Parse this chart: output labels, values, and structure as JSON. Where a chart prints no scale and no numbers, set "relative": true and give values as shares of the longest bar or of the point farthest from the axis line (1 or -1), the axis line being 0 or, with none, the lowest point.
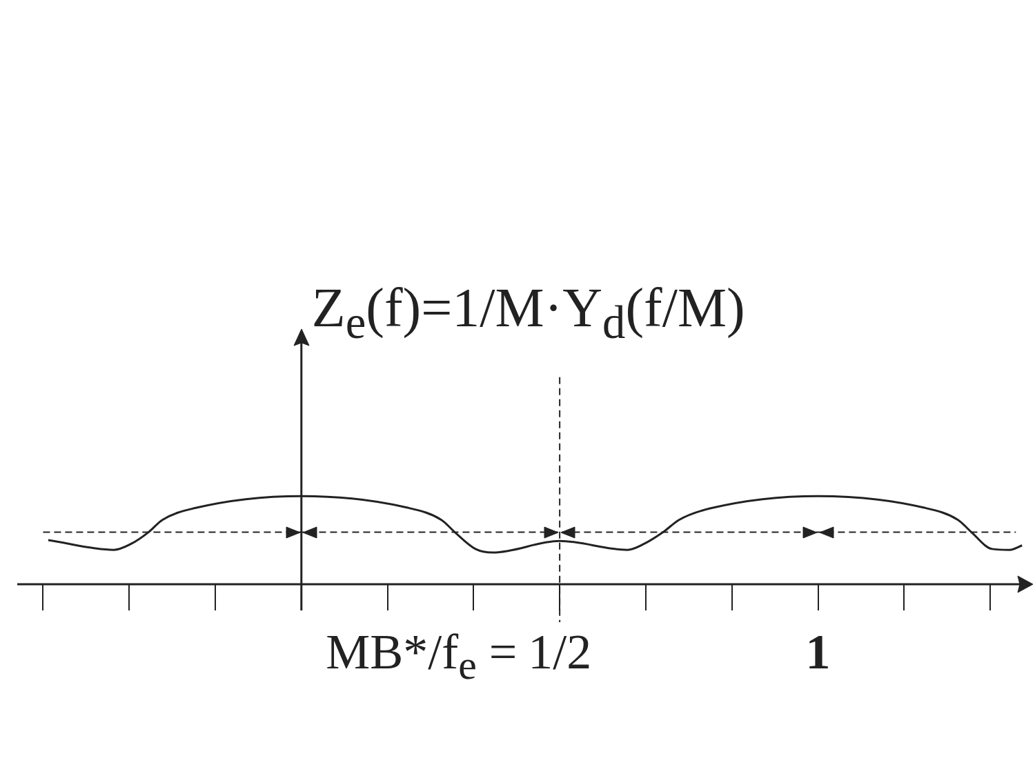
{
  "chart_data": {
    "type": "line",
    "relative": true,
    "ylabel": "Z$_{e}$(f)=1/M·Y$_{d}$(f/M)",
    "x": [
      -0.49,
      -0.363,
      -0.329,
      -0.296,
      -0.269,
      -0.209,
      0,
      0.204,
      0.271,
      0.297,
      0.337,
      0.371,
      0.5,
      0.631,
      0.664,
      0.7,
      0.731,
      0.791,
      1,
      1.204,
      1.271,
      1.297,
      1.337,
      1.371,
      1.395
    ],
    "values": [
      0.5,
      0.39,
      0.46,
      0.59,
      0.73,
      0.86,
      1,
      0.87,
      0.73,
      0.59,
      0.4,
      0.36,
      0.49,
      0.39,
      0.46,
      0.59,
      0.73,
      0.86,
      1,
      0.87,
      0.73,
      0.59,
      0.4,
      0.39,
      0.44
    ],
    "color": "#222222",
    "xlim": [
      -0.55,
      1.4
    ],
    "xticks": [
      {
        "value": 0.5,
        "label": "1/2"
      },
      1
    ],
    "ref_lines": [
      {
        "axis": "y",
        "value": 0.59,
        "line_style": "dashed"
      },
      {
        "axis": "x",
        "value": 0.5,
        "line_style": "dashed"
      }
    ],
    "annotations": [
      "MB*/f$_{e}$ ="
    ],
    "grid": false,
    "legend": false,
    "marker": "none",
    "line_style": "solid"
  }
}
